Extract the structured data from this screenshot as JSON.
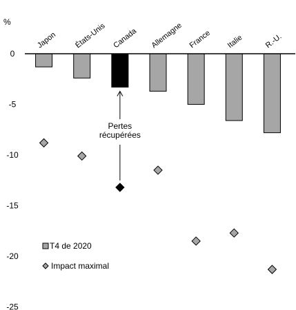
{
  "chart_data": {
    "type": "bar",
    "ylabel": "%",
    "ylim": [
      -25,
      0
    ],
    "yticks": [
      0,
      -5,
      -10,
      -15,
      -20,
      -25
    ],
    "grid": false,
    "legend_placement": "bottom-left",
    "categories": [
      "Japon",
      "États-Unis",
      "Canada",
      "Allemagne",
      "France",
      "Italie",
      "R.-U."
    ],
    "series": [
      {
        "name": "T4 de 2020",
        "kind": "bar",
        "values": [
          -1.3,
          -2.4,
          -3.3,
          -3.7,
          -5.0,
          -6.6,
          -7.8
        ],
        "color": "#a6a6a6",
        "highlight_index": 2,
        "highlight_color": "#000000"
      },
      {
        "name": "Impact maximal",
        "kind": "marker",
        "values": [
          -8.8,
          -10.1,
          -13.2,
          -11.5,
          -18.5,
          -17.7,
          -21.3
        ],
        "color": "#a6a6a6",
        "highlight_index": 2,
        "highlight_color": "#000000"
      }
    ],
    "annotation": {
      "lines": [
        "Pertes",
        "récupérées"
      ],
      "category": "Canada"
    }
  }
}
